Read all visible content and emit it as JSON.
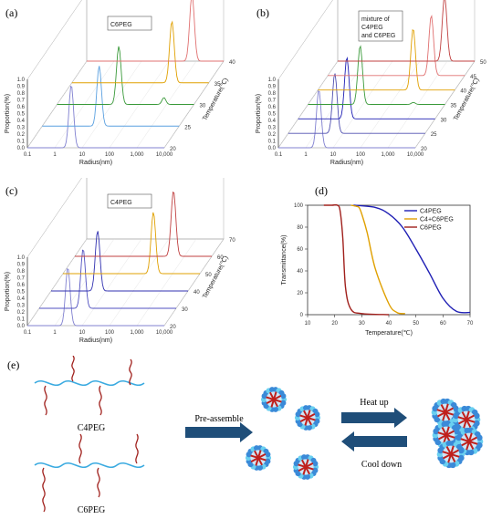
{
  "panels": {
    "a": {
      "label": "(a)",
      "legend": [
        "C6PEG"
      ]
    },
    "b": {
      "label": "(b)",
      "legend": [
        "mixture of",
        "C4PEG",
        "and C6PEG"
      ]
    },
    "c": {
      "label": "(c)",
      "legend": [
        "C4PEG"
      ]
    },
    "d": {
      "label": "(d)"
    },
    "e": {
      "label": "(e)"
    }
  },
  "axes": {
    "x_label": "Radius(nm)",
    "y_label": "Proportion(%)",
    "z_label": "Temperature(℃)",
    "x_ticks": [
      "0.1",
      "1",
      "10",
      "100",
      "1,000",
      "10,000"
    ],
    "y_ticks": [
      "0.0",
      "0.1",
      "0.2",
      "0.3",
      "0.4",
      "0.5",
      "0.6",
      "0.7",
      "0.8",
      "0.9",
      "1.0"
    ]
  },
  "scheme": {
    "c4peg": "C4PEG",
    "c6peg": "C6PEG",
    "pre_assemble": "Pre-assemble",
    "heat_up": "Heat up",
    "cool_down": "Cool down"
  },
  "colors": {
    "blue": "#1f1fb4",
    "orange": "#e0a000",
    "red": "#a0201c",
    "green": "#3a9a3a",
    "lightblue": "#5aa0e0",
    "purple": "#8080d0",
    "salmon": "#e07070"
  },
  "chart_data": [
    {
      "type": "line",
      "panel": "a",
      "xlabel": "Radius(nm)",
      "ylabel": "Proportion(%)",
      "zlabel": "Temperature(℃)",
      "x_scale": "log",
      "xlim": [
        0.1,
        10000
      ],
      "ylim": [
        0,
        1.0
      ],
      "z_ticks": [
        "20",
        "25",
        "30",
        "35",
        "40"
      ],
      "series": [
        {
          "z": 20,
          "color": "#8080d0",
          "peak_x": 4,
          "peak_y": 0.92
        },
        {
          "z": 25,
          "color": "#5aa0e0",
          "peak_x": 12,
          "peak_y": 0.88
        },
        {
          "z": 30,
          "color": "#3a9a3a",
          "peak_x": 18,
          "peak_y": 0.85,
          "second_peak_x": 800,
          "second_peak_y": 0.1
        },
        {
          "z": 35,
          "color": "#e0a000",
          "peak_x": 450,
          "peak_y": 0.9
        },
        {
          "z": 40,
          "color": "#e07070",
          "peak_x": 700,
          "peak_y": 0.98
        }
      ]
    },
    {
      "type": "line",
      "panel": "b",
      "xlabel": "Radius(nm)",
      "ylabel": "Proportion(%)",
      "zlabel": "Temperature(℃)",
      "x_scale": "log",
      "xlim": [
        0.1,
        10000
      ],
      "ylim": [
        0,
        1.0
      ],
      "z_ticks": [
        "20",
        "25",
        "30",
        "35",
        "40",
        "45",
        "50"
      ],
      "series": [
        {
          "z": 20,
          "color": "#8080d0",
          "peak_x": 3,
          "peak_y": 0.85
        },
        {
          "z": 25,
          "color": "#5050b0",
          "peak_x": 5,
          "peak_y": 0.88
        },
        {
          "z": 30,
          "color": "#1f1fb4",
          "peak_x": 6,
          "peak_y": 0.9
        },
        {
          "z": 35,
          "color": "#3a9a3a",
          "peak_x": 8,
          "peak_y": 0.86,
          "second_peak_x": 700,
          "second_peak_y": 0.03
        },
        {
          "z": 40,
          "color": "#e0a000",
          "peak_x": 300,
          "peak_y": 0.9
        },
        {
          "z": 45,
          "color": "#e07070",
          "peak_x": 600,
          "peak_y": 0.88
        },
        {
          "z": 50,
          "color": "#c04040",
          "peak_x": 800,
          "peak_y": 0.95
        }
      ]
    },
    {
      "type": "line",
      "panel": "c",
      "xlabel": "Radius(nm)",
      "ylabel": "Proportion(%)",
      "zlabel": "Temperature(℃)",
      "x_scale": "log",
      "xlim": [
        0.1,
        10000
      ],
      "ylim": [
        0,
        1.0
      ],
      "z_ticks": [
        "20",
        "30",
        "40",
        "50",
        "60",
        "70"
      ],
      "series": [
        {
          "z": 20,
          "color": "#8080d0",
          "peak_x": 3,
          "peak_y": 0.85
        },
        {
          "z": 30,
          "color": "#5050c0",
          "peak_x": 4,
          "peak_y": 0.87
        },
        {
          "z": 40,
          "color": "#3030b0",
          "peak_x": 5,
          "peak_y": 0.88
        },
        {
          "z": 50,
          "color": "#e0a000",
          "peak_x": 200,
          "peak_y": 0.9
        },
        {
          "z": 60,
          "color": "#c04040",
          "peak_x": 400,
          "peak_y": 0.96
        }
      ]
    },
    {
      "type": "line",
      "panel": "d",
      "xlabel": "Temperature(℃)",
      "ylabel": "Transmittance(%)",
      "xlim": [
        10,
        70
      ],
      "ylim": [
        0,
        100
      ],
      "x_ticks": [
        10,
        20,
        30,
        40,
        50,
        60,
        70
      ],
      "y_ticks": [
        0,
        20,
        40,
        60,
        80,
        100
      ],
      "legend_position": "top-right",
      "series": [
        {
          "name": "C4PEG",
          "color": "#1f1fb4",
          "x": [
            27,
            35,
            40,
            45,
            50,
            55,
            60,
            65,
            70
          ],
          "y": [
            100,
            98,
            92,
            80,
            60,
            38,
            15,
            3,
            2
          ]
        },
        {
          "name": "C4+C6PEG",
          "color": "#e0a000",
          "x": [
            26,
            28,
            29,
            30,
            32,
            35,
            40,
            43,
            46
          ],
          "y": [
            100,
            99,
            98,
            92,
            75,
            42,
            10,
            2,
            1
          ]
        },
        {
          "name": "C6PEG",
          "color": "#a0201c",
          "x": [
            16,
            19,
            21,
            22,
            23,
            24,
            26,
            30,
            40
          ],
          "y": [
            100,
            100,
            100,
            95,
            70,
            25,
            5,
            1,
            0
          ]
        }
      ]
    }
  ]
}
